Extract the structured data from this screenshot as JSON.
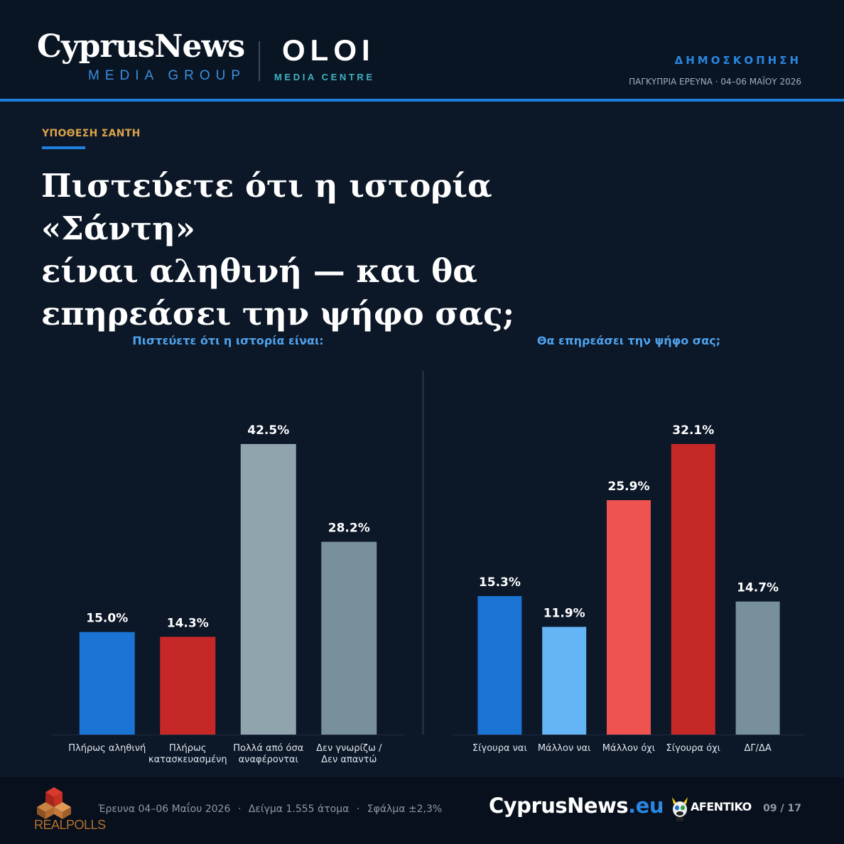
{
  "header": {
    "brand_main": "CyprusNews",
    "brand_main_sub": "MEDIA GROUP",
    "brand_partner": "OLOI",
    "brand_partner_sub": "MEDIA CENTRE",
    "kicker": "ΔΗΜΟΣΚΟΠΗΣΗ",
    "subtitle": "ΠΑΓΚΥΠΡΙΑ ΕΡΕΥΝΑ · 04–06 ΜΑΪΟΥ 2026"
  },
  "section_tag": "ΥΠΟΘΕΣΗ ΣΑΝΤΗ",
  "headline": {
    "line1": "Πιστεύετε ότι η ιστορία «Σάντη»",
    "line2": "είναι αληθινή — και θα",
    "line3": "επηρεάσει την ψήφο σας;"
  },
  "chart_data": [
    {
      "type": "bar",
      "title": "Πιστεύετε ότι η ιστορία είναι:",
      "categories": [
        [
          "Πλήρως αληθινή"
        ],
        [
          "Πλήρως",
          "κατασκευασμένη"
        ],
        [
          "Πολλά από όσα",
          "αναφέρονται"
        ],
        [
          "Δεν γνωρίζω /",
          "Δεν απαντώ"
        ]
      ],
      "values": [
        15.0,
        14.3,
        42.5,
        28.2
      ],
      "value_labels": [
        "15.0%",
        "14.3%",
        "42.5%",
        "28.2%"
      ],
      "colors": [
        "#1b74d4",
        "#c62828",
        "#90a4ae",
        "#78909c"
      ],
      "unit": "%",
      "ylim": [
        0,
        42.5
      ],
      "grid": false,
      "legend": false
    },
    {
      "type": "bar",
      "title": "Θα επηρεάσει την ψήφο σας;",
      "categories": [
        [
          "Σίγουρα ναι"
        ],
        [
          "Μάλλον ναι"
        ],
        [
          "Μάλλον όχι"
        ],
        [
          "Σίγουρα όχι"
        ],
        [
          "ΔΓ/ΔΑ"
        ]
      ],
      "values": [
        15.3,
        11.9,
        25.9,
        32.1,
        14.7
      ],
      "value_labels": [
        "15.3%",
        "11.9%",
        "25.9%",
        "32.1%",
        "14.7%"
      ],
      "colors": [
        "#1b74d4",
        "#64b5f6",
        "#ef5350",
        "#c62828",
        "#78909c"
      ],
      "unit": "%",
      "ylim": [
        0,
        32.1
      ],
      "grid": false,
      "legend": false
    }
  ],
  "footer": {
    "pollster": "REALPOLLS",
    "survey_dates": "Έρευνα 04–06 Μαΐου 2026",
    "sample": "Δείγμα 1.555 άτομα",
    "margin": "Σφάλμα ±2,3%",
    "site_name": "CyprusNews",
    "site_tld": ".eu",
    "partner": "AFENTIKO",
    "pager": "09 / 17"
  }
}
